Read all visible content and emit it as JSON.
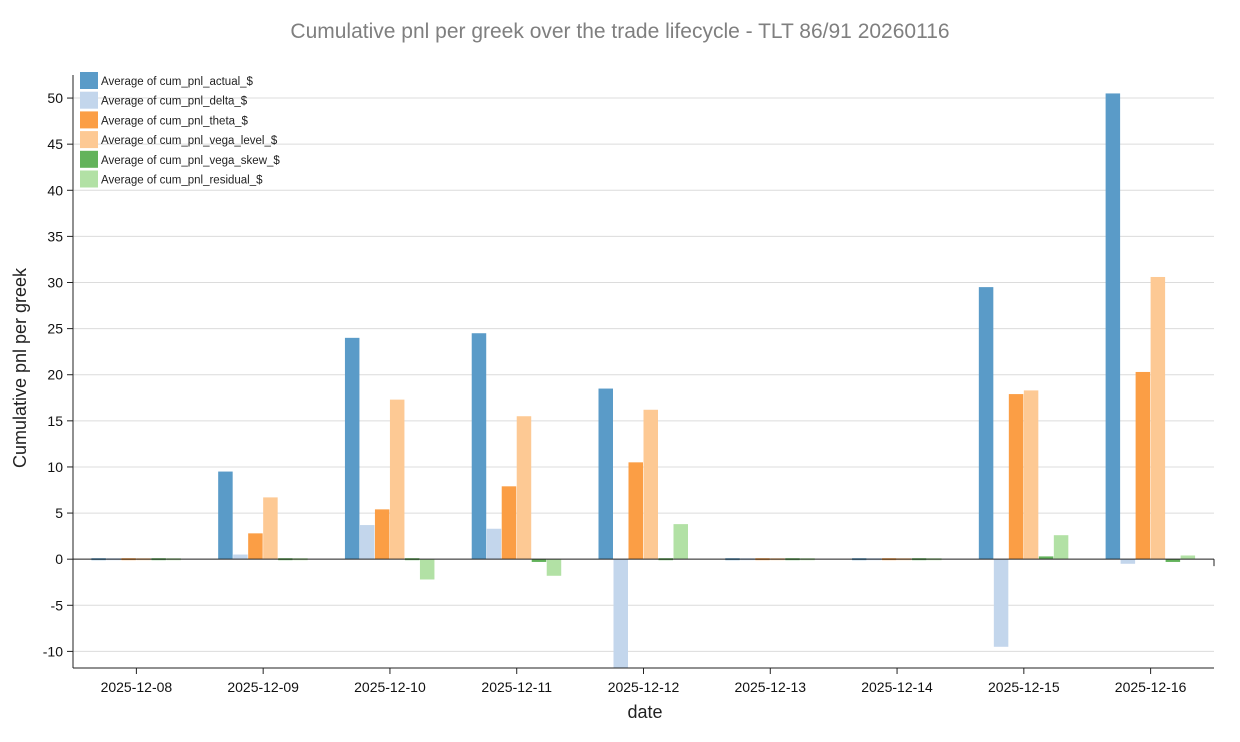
{
  "chart_data": {
    "type": "bar",
    "title": "Cumulative pnl per greek over the trade lifecycle - TLT 86/91 20260116",
    "xlabel": "date",
    "ylabel": "Cumulative pnl per greek",
    "ylim": [
      -11.8,
      52.5
    ],
    "yticks": [
      -10,
      -5,
      0,
      5,
      10,
      15,
      20,
      25,
      30,
      35,
      40,
      45,
      50
    ],
    "ytick_labels": [
      "-10",
      "-5",
      "0",
      "5",
      "10",
      "15",
      "20",
      "25",
      "30",
      "35",
      "40",
      "45",
      "50"
    ],
    "grid": true,
    "legend_position": "top-left",
    "categories": [
      "2025-12-08",
      "2025-12-09",
      "2025-12-10",
      "2025-12-11",
      "2025-12-12",
      "2025-12-13",
      "2025-12-14",
      "2025-12-15",
      "2025-12-16"
    ],
    "series": [
      {
        "name": "Average of cum_pnl_actual_$",
        "color": "#5a9bc8",
        "values": [
          0.0,
          9.5,
          24.0,
          24.5,
          18.5,
          0.0,
          0.0,
          29.5,
          50.5
        ]
      },
      {
        "name": "Average of cum_pnl_delta_$",
        "color": "#c3d6ec",
        "values": [
          0.0,
          0.5,
          3.7,
          3.3,
          -11.8,
          0.0,
          0.0,
          -9.5,
          -0.5
        ]
      },
      {
        "name": "Average of cum_pnl_theta_$",
        "color": "#fb9e45",
        "values": [
          0.0,
          2.8,
          5.4,
          7.9,
          10.5,
          0.0,
          0.0,
          17.9,
          20.3
        ]
      },
      {
        "name": "Average of cum_pnl_vega_level_$",
        "color": "#fdc994",
        "values": [
          0.0,
          6.7,
          17.3,
          15.5,
          16.2,
          0.0,
          0.0,
          18.3,
          30.6
        ]
      },
      {
        "name": "Average of cum_pnl_vega_skew_$",
        "color": "#63b35b",
        "values": [
          0.0,
          -0.1,
          -0.1,
          -0.3,
          0.1,
          0.0,
          0.0,
          0.3,
          -0.3
        ]
      },
      {
        "name": "Average of cum_pnl_residual_$",
        "color": "#b2e1a5",
        "values": [
          0.0,
          -0.2,
          -2.2,
          -1.8,
          3.8,
          0.0,
          0.0,
          2.6,
          0.4
        ]
      }
    ]
  }
}
